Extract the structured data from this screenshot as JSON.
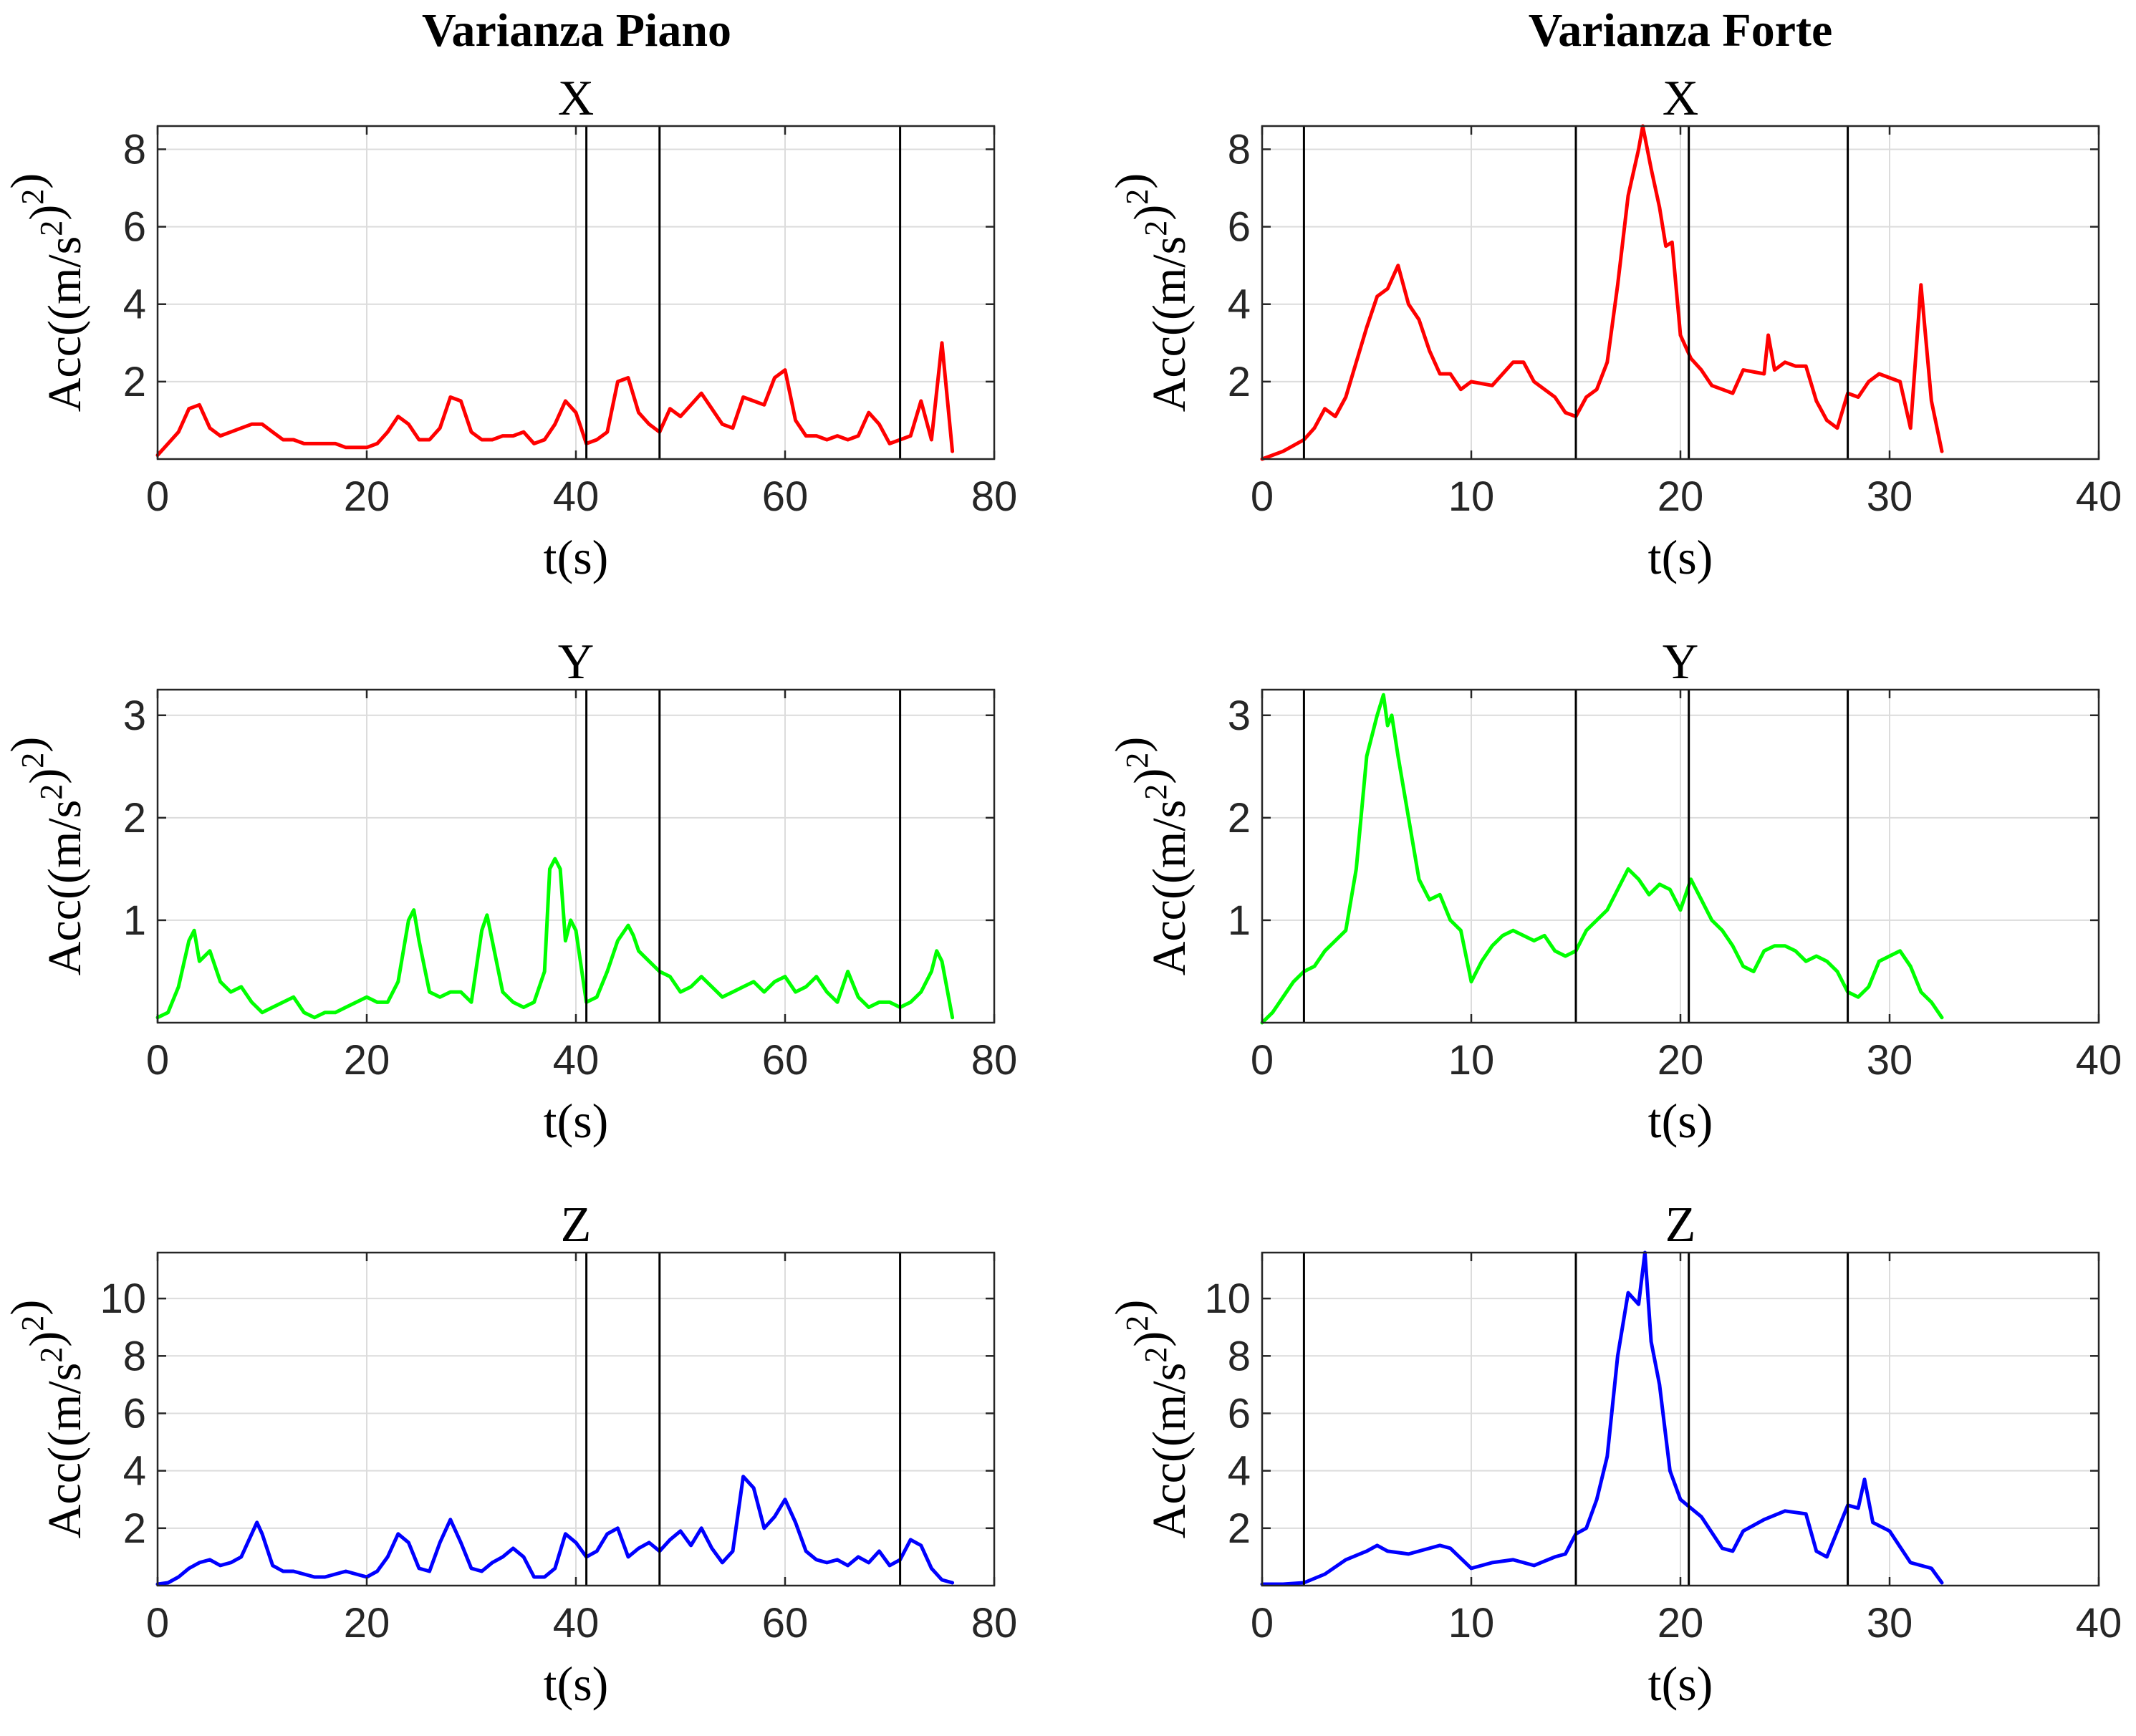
{
  "figure": {
    "col_titles": [
      "Varianza Piano",
      "Varianza Forte"
    ]
  },
  "chart_data": [
    {
      "type": "line",
      "title": "X",
      "column": "Varianza Piano",
      "xlabel": "t(s)",
      "ylabel": "Acc((m/s²)²)",
      "color": "#ff0000",
      "xlim": [
        0,
        80
      ],
      "ylim": [
        0,
        8.6
      ],
      "xticks": [
        0,
        20,
        40,
        60,
        80
      ],
      "yticks": [
        2,
        4,
        6,
        8
      ],
      "grid": true,
      "vlines": [
        41,
        48,
        71
      ],
      "x": [
        0,
        1,
        2,
        3,
        4,
        5,
        6,
        7,
        8,
        9,
        10,
        11,
        12,
        13,
        14,
        15,
        16,
        17,
        18,
        19,
        20,
        21,
        22,
        23,
        24,
        25,
        26,
        27,
        28,
        29,
        30,
        31,
        32,
        33,
        34,
        35,
        36,
        37,
        38,
        39,
        40,
        41,
        42,
        43,
        44,
        45,
        46,
        47,
        48,
        49,
        50,
        51,
        52,
        53,
        54,
        55,
        56,
        57,
        58,
        59,
        60,
        61,
        62,
        63,
        64,
        65,
        66,
        67,
        68,
        69,
        70,
        71,
        72,
        73,
        74,
        75,
        76
      ],
      "y": [
        0.1,
        0.4,
        0.7,
        1.3,
        1.4,
        0.8,
        0.6,
        0.7,
        0.8,
        0.9,
        0.9,
        0.7,
        0.5,
        0.5,
        0.4,
        0.4,
        0.4,
        0.4,
        0.3,
        0.3,
        0.3,
        0.4,
        0.7,
        1.1,
        0.9,
        0.5,
        0.5,
        0.8,
        1.6,
        1.5,
        0.7,
        0.5,
        0.5,
        0.6,
        0.6,
        0.7,
        0.4,
        0.5,
        0.9,
        1.5,
        1.2,
        0.4,
        0.5,
        0.7,
        2.0,
        2.1,
        1.2,
        0.9,
        0.7,
        1.3,
        1.1,
        1.4,
        1.7,
        1.3,
        0.9,
        0.8,
        1.6,
        1.5,
        1.4,
        2.1,
        2.3,
        1.0,
        0.6,
        0.6,
        0.5,
        0.6,
        0.5,
        0.6,
        1.2,
        0.9,
        0.4,
        0.5,
        0.6,
        1.5,
        0.5,
        3.0,
        0.2
      ]
    },
    {
      "type": "line",
      "title": "X",
      "column": "Varianza Forte",
      "xlabel": "t(s)",
      "ylabel": "Acc((m/s²)²)",
      "color": "#ff0000",
      "xlim": [
        0,
        40
      ],
      "ylim": [
        0,
        8.6
      ],
      "xticks": [
        0,
        10,
        20,
        30,
        40
      ],
      "yticks": [
        2,
        4,
        6,
        8
      ],
      "grid": true,
      "vlines": [
        2,
        15,
        20.4,
        28
      ],
      "x": [
        0,
        1,
        2,
        2.5,
        3,
        3.5,
        4,
        4.5,
        5,
        5.5,
        6,
        6.5,
        7,
        7.5,
        8,
        8.5,
        9,
        9.5,
        10,
        11,
        12,
        12.5,
        13,
        14,
        14.5,
        15,
        15.5,
        16,
        16.5,
        17,
        17.5,
        18,
        18.2,
        18.6,
        19,
        19.3,
        19.6,
        20,
        20.5,
        21,
        21.5,
        22,
        22.5,
        23,
        24,
        24.2,
        24.5,
        25,
        25.5,
        26,
        26.5,
        27,
        27.5,
        28,
        28.5,
        29,
        29.5,
        30,
        30.5,
        31,
        31.5,
        32,
        32.5
      ],
      "y": [
        0.0,
        0.2,
        0.5,
        0.8,
        1.3,
        1.1,
        1.6,
        2.5,
        3.4,
        4.2,
        4.4,
        5.0,
        4.0,
        3.6,
        2.8,
        2.2,
        2.2,
        1.8,
        2.0,
        1.9,
        2.5,
        2.5,
        2.0,
        1.6,
        1.2,
        1.1,
        1.6,
        1.8,
        2.5,
        4.5,
        6.8,
        8.0,
        8.6,
        7.5,
        6.5,
        5.5,
        5.6,
        3.2,
        2.6,
        2.3,
        1.9,
        1.8,
        1.7,
        2.3,
        2.2,
        3.2,
        2.3,
        2.5,
        2.4,
        2.4,
        1.5,
        1.0,
        0.8,
        1.7,
        1.6,
        2.0,
        2.2,
        2.1,
        2.0,
        0.8,
        4.5,
        1.5,
        0.2
      ]
    },
    {
      "type": "line",
      "title": "Y",
      "column": "Varianza Piano",
      "xlabel": "t(s)",
      "ylabel": "Acc((m/s²)²)",
      "color": "#00ff00",
      "xlim": [
        0,
        80
      ],
      "ylim": [
        0,
        3.25
      ],
      "xticks": [
        0,
        20,
        40,
        60,
        80
      ],
      "yticks": [
        1,
        2,
        3
      ],
      "grid": true,
      "vlines": [
        41,
        48,
        71
      ],
      "x": [
        0,
        1,
        2,
        3,
        3.5,
        4,
        5,
        5.5,
        6,
        7,
        8,
        9,
        10,
        11,
        12,
        13,
        14,
        15,
        16,
        17,
        18,
        19,
        20,
        21,
        22,
        23,
        24,
        24.5,
        25,
        26,
        27,
        28,
        29,
        30,
        31,
        31.5,
        32,
        33,
        34,
        35,
        36,
        37,
        37.5,
        38,
        38.5,
        39,
        39.5,
        40,
        41,
        42,
        43,
        44,
        45,
        45.5,
        46,
        47,
        48,
        49,
        50,
        51,
        52,
        53,
        54,
        55,
        56,
        57,
        58,
        59,
        60,
        61,
        62,
        63,
        64,
        65,
        66,
        67,
        68,
        69,
        70,
        71,
        72,
        73,
        74,
        74.5,
        75,
        76
      ],
      "y": [
        0.05,
        0.1,
        0.35,
        0.8,
        0.9,
        0.6,
        0.7,
        0.55,
        0.4,
        0.3,
        0.35,
        0.2,
        0.1,
        0.15,
        0.2,
        0.25,
        0.1,
        0.05,
        0.1,
        0.1,
        0.15,
        0.2,
        0.25,
        0.2,
        0.2,
        0.4,
        1.0,
        1.1,
        0.8,
        0.3,
        0.25,
        0.3,
        0.3,
        0.2,
        0.9,
        1.05,
        0.8,
        0.3,
        0.2,
        0.15,
        0.2,
        0.5,
        1.5,
        1.6,
        1.5,
        0.8,
        1.0,
        0.9,
        0.2,
        0.25,
        0.5,
        0.8,
        0.95,
        0.85,
        0.7,
        0.6,
        0.5,
        0.45,
        0.3,
        0.35,
        0.45,
        0.35,
        0.25,
        0.3,
        0.35,
        0.4,
        0.3,
        0.4,
        0.45,
        0.3,
        0.35,
        0.45,
        0.3,
        0.2,
        0.5,
        0.25,
        0.15,
        0.2,
        0.2,
        0.15,
        0.2,
        0.3,
        0.5,
        0.7,
        0.6,
        0.05
      ]
    },
    {
      "type": "line",
      "title": "Y",
      "column": "Varianza Forte",
      "xlabel": "t(s)",
      "ylabel": "Acc((m/s²)²)",
      "color": "#00ff00",
      "xlim": [
        0,
        40
      ],
      "ylim": [
        0,
        3.25
      ],
      "xticks": [
        0,
        10,
        20,
        30,
        40
      ],
      "yticks": [
        1,
        2,
        3
      ],
      "grid": true,
      "vlines": [
        2,
        15,
        20.4,
        28
      ],
      "x": [
        0,
        0.5,
        1,
        1.5,
        2,
        2.5,
        3,
        3.5,
        4,
        4.5,
        5,
        5.5,
        5.8,
        6,
        6.2,
        6.5,
        7,
        7.5,
        8,
        8.5,
        9,
        9.5,
        10,
        10.5,
        11,
        11.5,
        12,
        12.5,
        13,
        13.5,
        14,
        14.5,
        15,
        15.5,
        16,
        16.5,
        17,
        17.5,
        18,
        18.5,
        19,
        19.5,
        20,
        20.5,
        21,
        21.5,
        22,
        22.5,
        23,
        23.5,
        24,
        24.5,
        25,
        25.5,
        26,
        26.5,
        27,
        27.5,
        28,
        28.5,
        29,
        29.5,
        30,
        30.5,
        31,
        31.5,
        32,
        32.5
      ],
      "y": [
        0.0,
        0.1,
        0.25,
        0.4,
        0.5,
        0.55,
        0.7,
        0.8,
        0.9,
        1.5,
        2.6,
        3.0,
        3.2,
        2.9,
        3.0,
        2.6,
        2.0,
        1.4,
        1.2,
        1.25,
        1.0,
        0.9,
        0.4,
        0.6,
        0.75,
        0.85,
        0.9,
        0.85,
        0.8,
        0.85,
        0.7,
        0.65,
        0.7,
        0.9,
        1.0,
        1.1,
        1.3,
        1.5,
        1.4,
        1.25,
        1.35,
        1.3,
        1.1,
        1.4,
        1.2,
        1.0,
        0.9,
        0.75,
        0.55,
        0.5,
        0.7,
        0.75,
        0.75,
        0.7,
        0.6,
        0.65,
        0.6,
        0.5,
        0.3,
        0.25,
        0.35,
        0.6,
        0.65,
        0.7,
        0.55,
        0.3,
        0.2,
        0.05
      ]
    },
    {
      "type": "line",
      "title": "Z",
      "column": "Varianza Piano",
      "xlabel": "t(s)",
      "ylabel": "Acc((m/s²)²)",
      "color": "#0000ff",
      "xlim": [
        0,
        80
      ],
      "ylim": [
        0,
        11.6
      ],
      "xticks": [
        0,
        20,
        40,
        60,
        80
      ],
      "yticks": [
        2,
        4,
        6,
        8,
        10
      ],
      "grid": true,
      "vlines": [
        41,
        48,
        71
      ],
      "x": [
        0,
        1,
        2,
        3,
        4,
        5,
        6,
        7,
        8,
        9,
        9.5,
        10,
        11,
        12,
        13,
        14,
        15,
        16,
        17,
        18,
        19,
        20,
        21,
        22,
        23,
        24,
        25,
        26,
        27,
        28,
        29,
        30,
        31,
        32,
        33,
        34,
        35,
        36,
        37,
        38,
        39,
        40,
        41,
        42,
        43,
        44,
        45,
        46,
        47,
        48,
        49,
        50,
        51,
        52,
        53,
        54,
        55,
        56,
        57,
        58,
        59,
        60,
        61,
        62,
        63,
        64,
        65,
        66,
        67,
        68,
        69,
        70,
        71,
        72,
        73,
        74,
        75,
        76
      ],
      "y": [
        0.05,
        0.1,
        0.3,
        0.6,
        0.8,
        0.9,
        0.7,
        0.8,
        1.0,
        1.8,
        2.2,
        1.8,
        0.7,
        0.5,
        0.5,
        0.4,
        0.3,
        0.3,
        0.4,
        0.5,
        0.4,
        0.3,
        0.5,
        1.0,
        1.8,
        1.5,
        0.6,
        0.5,
        1.5,
        2.3,
        1.5,
        0.6,
        0.5,
        0.8,
        1.0,
        1.3,
        1.0,
        0.3,
        0.3,
        0.6,
        1.8,
        1.5,
        1.0,
        1.2,
        1.8,
        2.0,
        1.0,
        1.3,
        1.5,
        1.2,
        1.6,
        1.9,
        1.4,
        2.0,
        1.3,
        0.8,
        1.2,
        3.8,
        3.4,
        2.0,
        2.4,
        3.0,
        2.2,
        1.2,
        0.9,
        0.8,
        0.9,
        0.7,
        1.0,
        0.8,
        1.2,
        0.7,
        0.9,
        1.6,
        1.4,
        0.6,
        0.2,
        0.1
      ]
    },
    {
      "type": "line",
      "title": "Z",
      "column": "Varianza Forte",
      "xlabel": "t(s)",
      "ylabel": "Acc((m/s²)²)",
      "color": "#0000ff",
      "xlim": [
        0,
        40
      ],
      "ylim": [
        0,
        11.6
      ],
      "xticks": [
        0,
        10,
        20,
        30,
        40
      ],
      "yticks": [
        2,
        4,
        6,
        8,
        10
      ],
      "grid": true,
      "vlines": [
        2,
        15,
        20.4,
        28
      ],
      "x": [
        0,
        1,
        2,
        3,
        4,
        5,
        5.5,
        6,
        7,
        8,
        8.5,
        9,
        10,
        11,
        12,
        13,
        14,
        14.5,
        15,
        15.5,
        16,
        16.5,
        17,
        17.5,
        18,
        18.3,
        18.6,
        19,
        19.5,
        20,
        20.5,
        21,
        22,
        22.5,
        23,
        24,
        25,
        26,
        26.5,
        27,
        28,
        28.5,
        28.8,
        29.2,
        30,
        31,
        32,
        32.5
      ],
      "y": [
        0.05,
        0.05,
        0.1,
        0.4,
        0.9,
        1.2,
        1.4,
        1.2,
        1.1,
        1.3,
        1.4,
        1.3,
        0.6,
        0.8,
        0.9,
        0.7,
        1.0,
        1.1,
        1.8,
        2.0,
        3.0,
        4.5,
        8.0,
        10.2,
        9.8,
        11.6,
        8.5,
        7.0,
        4.0,
        3.0,
        2.7,
        2.4,
        1.3,
        1.2,
        1.9,
        2.3,
        2.6,
        2.5,
        1.2,
        1.0,
        2.8,
        2.7,
        3.7,
        2.2,
        1.9,
        0.8,
        0.6,
        0.1
      ]
    }
  ]
}
